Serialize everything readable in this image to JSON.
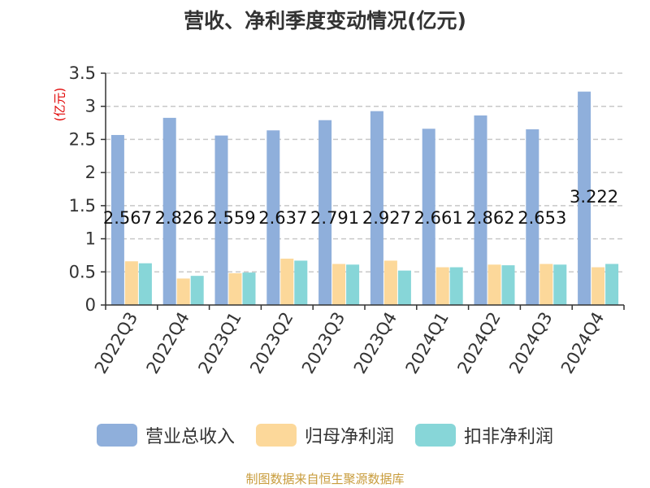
{
  "colors": {
    "revenue": "#8fafdb",
    "net_profit": "#fcd89a",
    "deducted_profit": "#87d6d8",
    "axis": "#333333",
    "grid": "#c8c8c8",
    "unit_label": "#e00000",
    "source": "#c89c3c"
  },
  "chart_data": {
    "type": "bar",
    "title": "营收、净利季度变动情况(亿元)",
    "ylabel": "(亿元)",
    "xlabel": "",
    "ylim": [
      0,
      3.5
    ],
    "yticks": [
      0,
      0.5,
      1,
      1.5,
      2,
      2.5,
      3,
      3.5
    ],
    "ytick_labels": [
      "0",
      "0.5",
      "1",
      "1.5",
      "2",
      "2.5",
      "3",
      "3.5"
    ],
    "grid": true,
    "legend_position": "bottom",
    "categories": [
      "2022Q3",
      "2022Q4",
      "2023Q1",
      "2023Q2",
      "2023Q3",
      "2023Q4",
      "2024Q1",
      "2024Q2",
      "2024Q3",
      "2024Q4"
    ],
    "series": [
      {
        "name": "营业总收入",
        "values": [
          2.567,
          2.826,
          2.559,
          2.637,
          2.791,
          2.927,
          2.661,
          2.862,
          2.653,
          3.222
        ],
        "data_labels": [
          "2.567",
          "2.826",
          "2.559",
          "2.637",
          "2.791",
          "2.927",
          "2.661",
          "2.862",
          "2.653",
          "3.222"
        ]
      },
      {
        "name": "归母净利润",
        "values": [
          0.66,
          0.4,
          0.48,
          0.7,
          0.62,
          0.67,
          0.57,
          0.61,
          0.62,
          0.57
        ]
      },
      {
        "name": "扣非净利润",
        "values": [
          0.63,
          0.44,
          0.49,
          0.67,
          0.61,
          0.52,
          0.57,
          0.6,
          0.61,
          0.62
        ]
      }
    ]
  },
  "source_text": "制图数据来自恒生聚源数据库"
}
